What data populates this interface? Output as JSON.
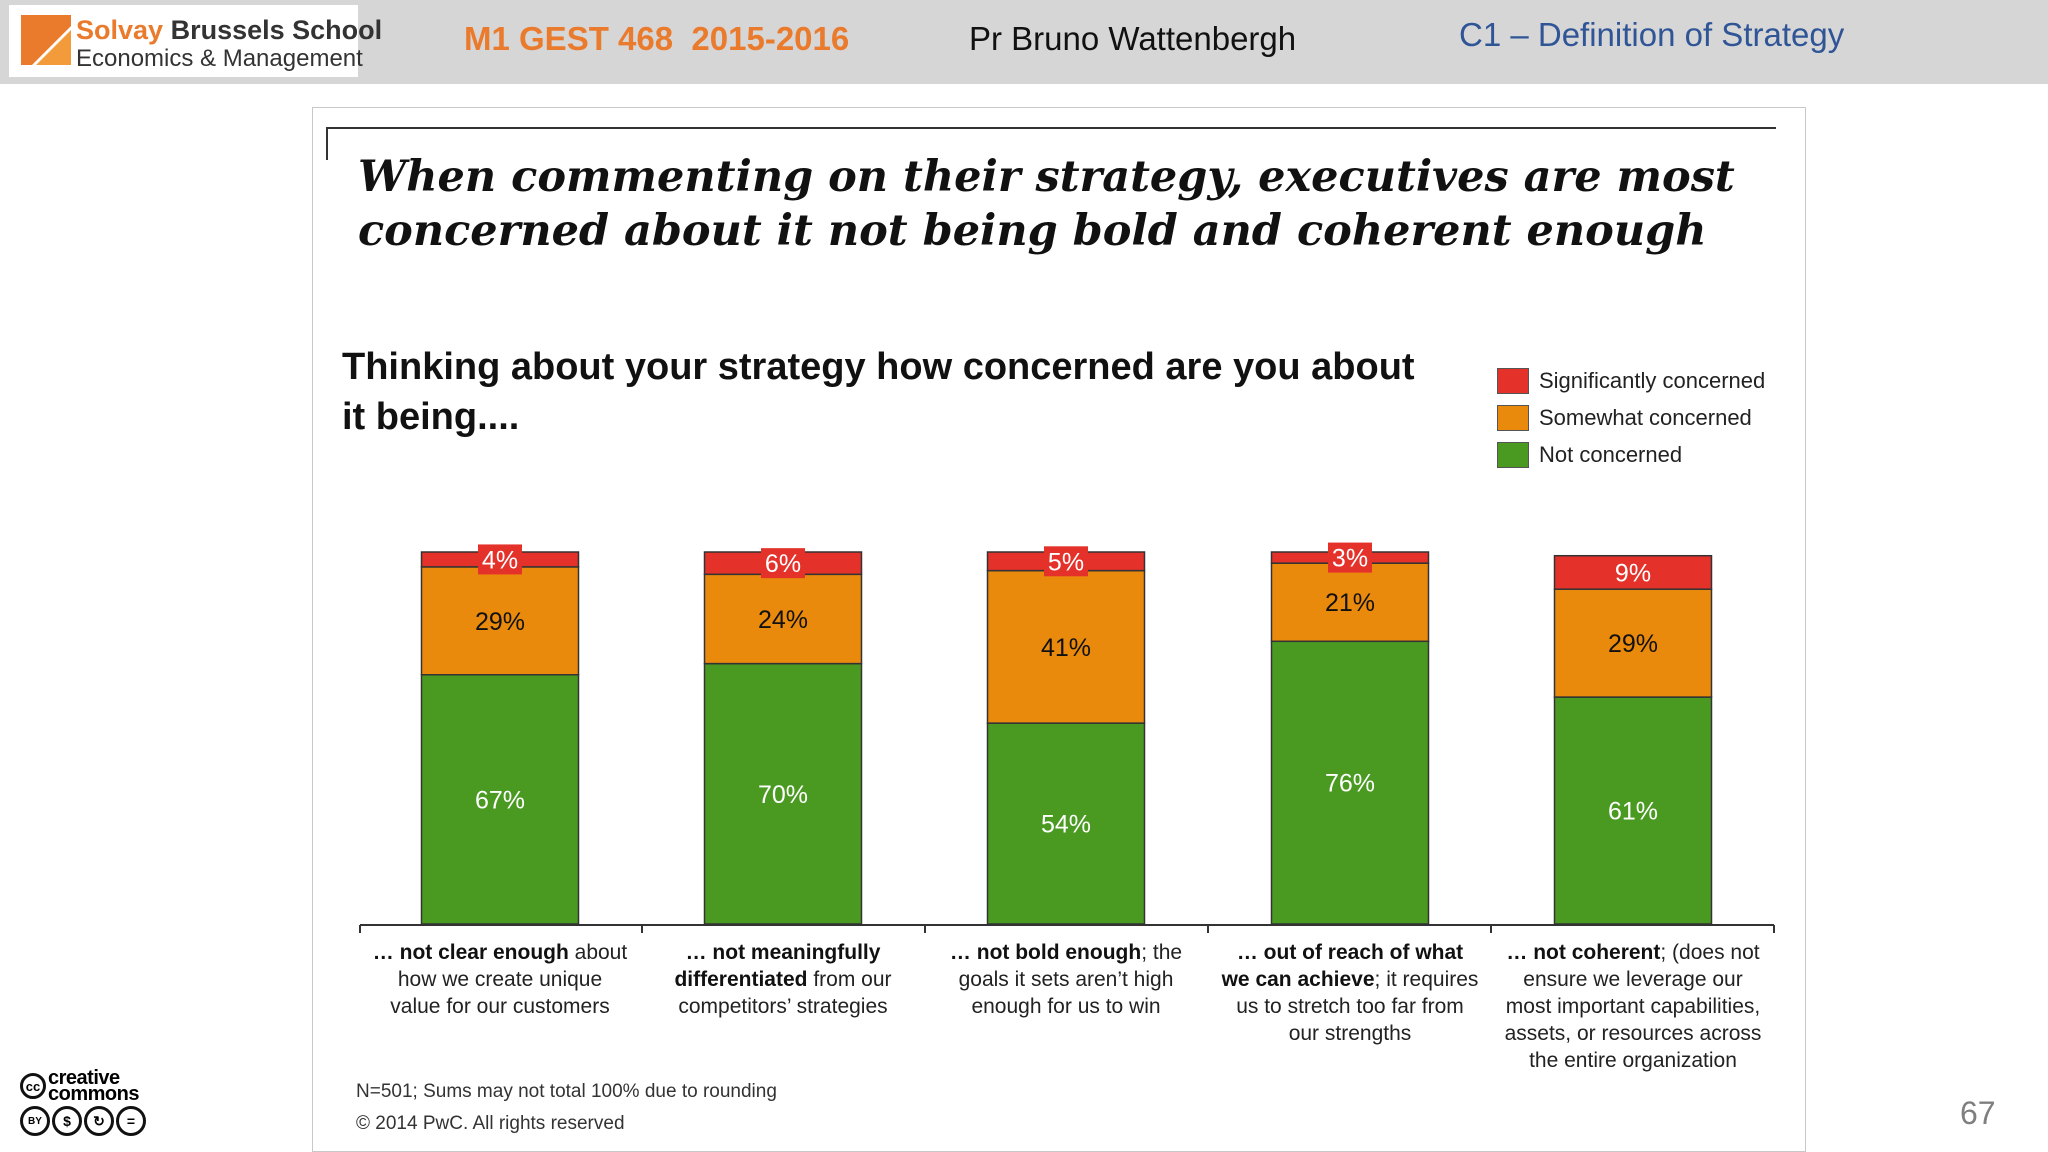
{
  "header": {
    "logo": {
      "line1_brand": "Solvay",
      "line1_rest": " Brussels School",
      "line2": "Economics & Management"
    },
    "course": "M1 GEST 468  2015-2016",
    "professor": "Pr Bruno Wattenbergh",
    "chapter": "C1 – Definition of Strategy"
  },
  "slide": {
    "title": "When commenting on their strategy, executives are most concerned about it not being bold and coherent enough",
    "page_number": "67"
  },
  "chart_data": {
    "type": "bar",
    "stacked": true,
    "title": "Thinking about your strategy how concerned are you about it being....",
    "legend_position": "top-right",
    "grid": false,
    "ylim": [
      0,
      100
    ],
    "categories": [
      {
        "bold": "… not clear enough",
        "rest": " about how we create unique value for our customers"
      },
      {
        "bold": "… not meaningfully differentiated",
        "rest": " from our competitors’ strategies"
      },
      {
        "bold": "… not bold enough",
        "rest": "; the goals it sets aren’t high enough for us to win"
      },
      {
        "bold": "… out of reach of what we can achieve",
        "rest": "; it requires us to stretch too far from our strengths"
      },
      {
        "bold": "… not coherent",
        "rest": "; (does not ensure we leverage our most important capabilities, assets, or resources across the entire organization"
      }
    ],
    "series": [
      {
        "name": "Not concerned",
        "color": "#4a9a22",
        "values": [
          67,
          70,
          54,
          76,
          61
        ]
      },
      {
        "name": "Somewhat concerned",
        "color": "#ea8a0c",
        "values": [
          29,
          24,
          41,
          21,
          29
        ]
      },
      {
        "name": "Significantly concerned",
        "color": "#e4322b",
        "values": [
          4,
          6,
          5,
          3,
          9
        ]
      }
    ],
    "value_suffix": "%"
  },
  "legend": [
    {
      "label": "Significantly concerned",
      "color": "#e4322b"
    },
    {
      "label": "Somewhat concerned",
      "color": "#ea8a0c"
    },
    {
      "label": "Not concerned",
      "color": "#4a9a22"
    }
  ],
  "footnote": "N=501; Sums may not total 100% due to rounding",
  "copyright": "© 2014 PwC. All rights reserved",
  "license": {
    "word": "creative commons",
    "icons": [
      "cc-icon",
      "by-icon",
      "nc-icon",
      "sa-icon",
      "nd-icon"
    ]
  }
}
